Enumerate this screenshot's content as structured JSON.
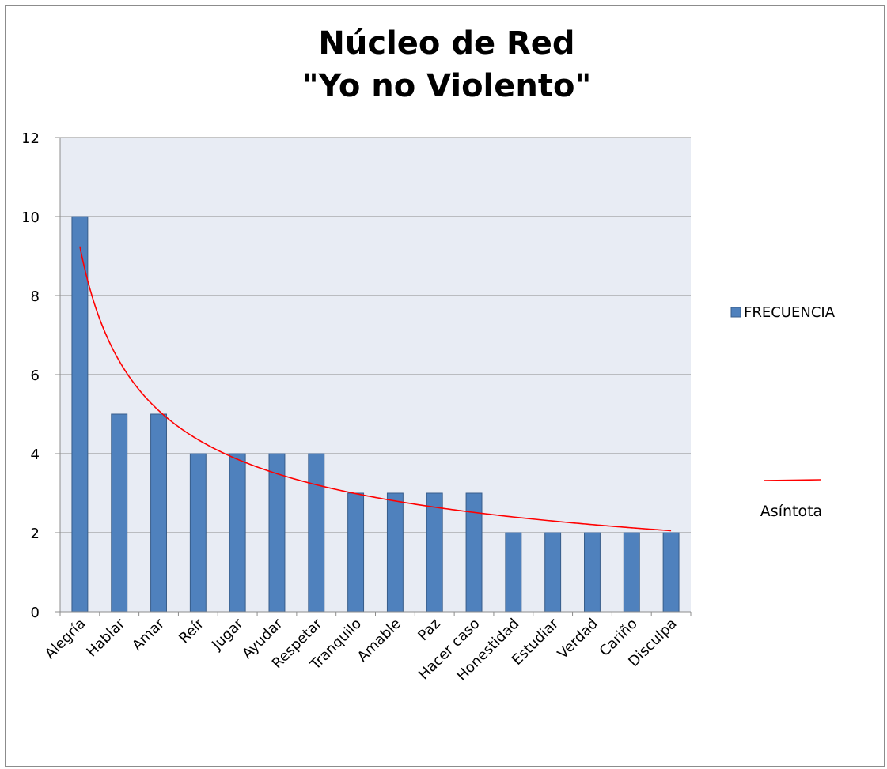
{
  "chart_data": {
    "type": "bar",
    "title_lines": [
      "Núcleo de Red",
      "\"Yo no Violento\""
    ],
    "categories": [
      "Alegría",
      "Hablar",
      "Amar",
      "Reír",
      "Jugar",
      "Ayudar",
      "Respetar",
      "Tranquilo",
      "Amable",
      "Paz",
      "Hacer caso",
      "Honestidad",
      "Estudiar",
      "Verdad",
      "Cariño",
      "Disculpa"
    ],
    "series": [
      {
        "name": "FRECUENCIA",
        "values": [
          10,
          5,
          5,
          4,
          4,
          4,
          4,
          3,
          3,
          3,
          3,
          2,
          2,
          2,
          2,
          2
        ],
        "color": "#4f81bd"
      }
    ],
    "trendline": {
      "name": "Asíntota",
      "color": "#ff0000",
      "type": "power"
    },
    "ylim": [
      0,
      12
    ],
    "yticks": [
      0,
      2,
      4,
      6,
      8,
      10,
      12
    ],
    "grid": true,
    "legend": "right",
    "plot_background": "#e8ecf4"
  }
}
